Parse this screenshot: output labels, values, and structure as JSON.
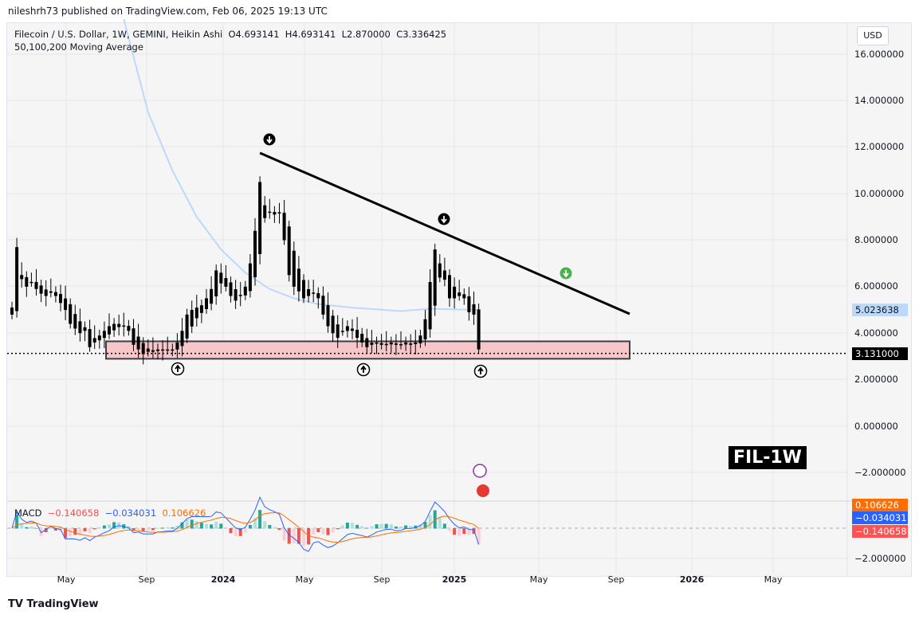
{
  "header": {
    "published": "nileshrh73 published on TradingView.com, Feb 06, 2025 19:13 UTC"
  },
  "legend": {
    "symbol": "Filecoin / U.S. Dollar, 1W, GEMINI, Heikin Ashi",
    "open": "O4.693141",
    "high": "H4.693141",
    "low": "L2.870000",
    "close": "C3.336425",
    "indicator": "50,100,200 Moving Average"
  },
  "currency": "USD",
  "price_axis": [
    "16.000000",
    "14.000000",
    "12.000000",
    "10.000000",
    "8.000000",
    "6.000000",
    "4.000000",
    "2.000000",
    "0.000000",
    "−2.000000"
  ],
  "macd_axis": "−2.000000",
  "tags": {
    "ma": "5.023638",
    "last": "3.131000",
    "macd_hist": "0.106626",
    "macd_signal": "−0.034031",
    "macd_line": "−0.140658"
  },
  "time_axis": [
    {
      "l": "May",
      "b": false
    },
    {
      "l": "Sep",
      "b": false
    },
    {
      "l": "2024",
      "b": true
    },
    {
      "l": "May",
      "b": false
    },
    {
      "l": "Sep",
      "b": false
    },
    {
      "l": "2025",
      "b": true
    },
    {
      "l": "May",
      "b": false
    },
    {
      "l": "Sep",
      "b": false
    },
    {
      "l": "2026",
      "b": true
    },
    {
      "l": "May",
      "b": false
    }
  ],
  "macd": {
    "label": "MACD",
    "v1": "−0.140658",
    "v2": "−0.034031",
    "v3": "0.106626"
  },
  "watermark": "FIL-1W",
  "brand": "TradingView",
  "colors": {
    "ma": "#bbd9fb",
    "zone": "#f7c6c9",
    "macd": "#2962ff",
    "signal": "#ff6d00",
    "up": "#26a69a",
    "down": "#ef5350"
  },
  "chart_data": {
    "type": "candlestick",
    "ylim": [
      -2,
      16
    ],
    "closes": [
      5.1,
      7.7,
      6.5,
      6.0,
      6.2,
      5.9,
      5.7,
      5.6,
      5.8,
      5.6,
      5.3,
      5.0,
      4.4,
      4.2,
      4.0,
      4.1,
      3.4,
      3.6,
      3.9,
      4.1,
      4.3,
      4.4,
      4.4,
      4.3,
      4.1,
      3.5,
      3.3,
      3.1,
      3.2,
      3.2,
      3.3,
      3.3,
      3.3,
      3.3,
      3.6,
      4.1,
      4.8,
      5.0,
      5.1,
      5.2,
      5.5,
      5.9,
      6.7,
      6.6,
      6.0,
      5.6,
      5.4,
      5.6,
      6.0,
      7.0,
      8.4,
      10.5,
      9.5,
      9.2,
      9.1,
      9.2,
      8.0,
      6.5,
      6.0,
      5.8,
      5.5,
      5.6,
      5.7,
      5.5,
      4.8,
      4.3,
      4.0,
      3.8,
      4.1,
      4.3,
      4.1,
      3.8,
      3.6,
      3.4,
      3.5,
      3.6,
      3.5,
      3.5,
      3.6,
      3.5,
      3.5,
      3.6,
      3.5,
      3.6,
      3.9,
      4.6,
      6.2,
      7.6,
      7.0,
      6.3,
      5.5,
      5.5,
      5.6,
      5.5,
      4.9,
      4.8,
      3.3
    ],
    "ma_keyframes": [
      [
        23,
        17.5
      ],
      [
        28,
        13.5
      ],
      [
        33,
        11.0
      ],
      [
        38,
        9.0
      ],
      [
        43,
        7.6
      ],
      [
        48,
        6.6
      ],
      [
        53,
        5.9
      ],
      [
        58,
        5.5
      ],
      [
        63,
        5.25
      ],
      [
        70,
        5.1
      ],
      [
        80,
        4.95
      ],
      [
        86,
        5.05
      ],
      [
        96,
        5.0
      ]
    ],
    "trendline": {
      "from": [
        51,
        11.75
      ],
      "to": [
        127,
        4.83
      ]
    },
    "support_zone": [
      2.9,
      3.65
    ],
    "last_price": 3.131
  }
}
